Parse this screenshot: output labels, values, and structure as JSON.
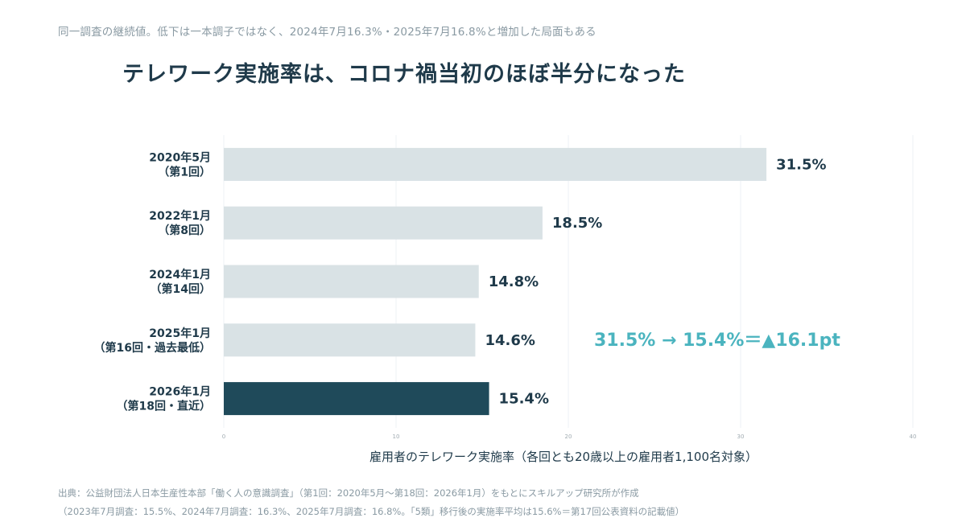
{
  "header": {
    "subtitle": "同一調査の継続値。低下は一本調子ではなく、2024年7月16.3%・2025年7月16.8%と増加した局面もある",
    "title": "テレワーク実施率は、コロナ禍当初のほぼ半分になった"
  },
  "chart_data": {
    "type": "bar",
    "orientation": "horizontal",
    "categories": [
      [
        "2020年5月",
        "（第1回）"
      ],
      [
        "2022年1月",
        "（第8回）"
      ],
      [
        "2024年1月",
        "（第14回）"
      ],
      [
        "2025年1月",
        "（第16回・過去最低）"
      ],
      [
        "2026年1月",
        "（第18回・直近）"
      ]
    ],
    "values": [
      31.5,
      18.5,
      14.8,
      14.6,
      15.4
    ],
    "value_labels": [
      "31.5%",
      "18.5%",
      "14.8%",
      "14.6%",
      "15.4%"
    ],
    "highlight_index": 4,
    "xlabel": "雇用者のテレワーク実施率（各回とも20歳以上の雇用者1,100名対象）",
    "xlim": [
      0,
      40
    ],
    "xticks": [
      "0",
      "10",
      "20",
      "30",
      "40"
    ],
    "grid": "vertical",
    "annotation": "31.5% → 15.4%＝▲16.1pt",
    "colors": {
      "bar": "#d9e2e5",
      "highlight": "#1f4a5a",
      "annotation": "#4bb4bf",
      "grid": "#eef2f4"
    }
  },
  "footer": {
    "source": "出典：公益財団法人日本生産性本部「働く人の意識調査」（第1回：2020年5月〜第18回：2026年1月）をもとにスキルアップ研究所が作成",
    "note": "（2023年7月調査：15.5%、2024年7月調査：16.3%、2025年7月調査：16.8%。「5類」移行後の実施率平均は15.6%＝第17回公表資料の記載値）"
  }
}
